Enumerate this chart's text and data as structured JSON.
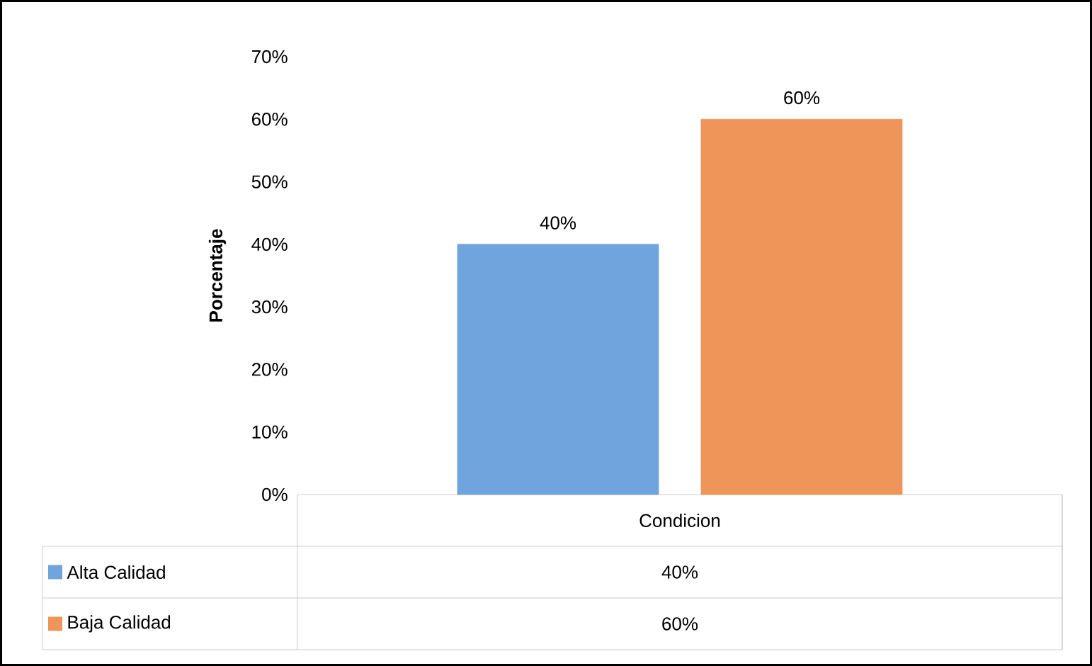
{
  "chart_data": {
    "type": "bar",
    "ylabel": "Porcentaje",
    "categories": [
      "Condicion"
    ],
    "series": [
      {
        "name": "Alta Calidad",
        "color": "#6fa5dc",
        "values": [
          40
        ],
        "value_labels": [
          "40%"
        ]
      },
      {
        "name": "Baja Calidad",
        "color": "#f0955a",
        "values": [
          60
        ],
        "value_labels": [
          "60%"
        ]
      }
    ],
    "ylim": [
      0,
      70
    ],
    "yticks": [
      {
        "value": 0,
        "label": "0%"
      },
      {
        "value": 10,
        "label": "10%"
      },
      {
        "value": 20,
        "label": "20%"
      },
      {
        "value": 30,
        "label": "30%"
      },
      {
        "value": 40,
        "label": "40%"
      },
      {
        "value": 50,
        "label": "50%"
      },
      {
        "value": 60,
        "label": "60%"
      },
      {
        "value": 70,
        "label": "70%"
      }
    ],
    "grid": false,
    "legend": "bottom",
    "data_labels": true
  }
}
